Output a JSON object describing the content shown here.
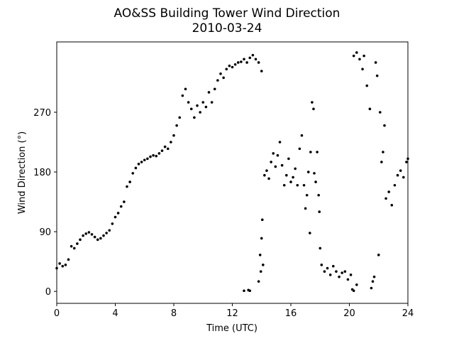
{
  "chart_data": {
    "type": "scatter",
    "title": "AO&SS Building Tower Wind Direction",
    "subtitle": "2010-03-24",
    "x_label": "Time (UTC)",
    "y_label": "Wind Direction (°)",
    "color": "#000000",
    "xlim": [
      0,
      24
    ],
    "xticks": [
      0,
      4,
      8,
      12,
      16,
      20,
      24
    ],
    "ylim": [
      -18,
      376
    ],
    "yticks": [
      0,
      90,
      180,
      270
    ],
    "x": [
      0.0,
      0.2,
      0.4,
      0.6,
      0.8,
      1.0,
      1.2,
      1.4,
      1.6,
      1.8,
      2.0,
      2.2,
      2.4,
      2.6,
      2.8,
      3.0,
      3.2,
      3.4,
      3.6,
      3.8,
      4.0,
      4.2,
      4.4,
      4.6,
      4.8,
      5.0,
      5.2,
      5.4,
      5.6,
      5.8,
      6.0,
      6.2,
      6.4,
      6.6,
      6.8,
      7.0,
      7.2,
      7.4,
      7.6,
      7.8,
      8.0,
      8.2,
      8.4,
      8.6,
      8.8,
      9.0,
      9.2,
      9.4,
      9.6,
      9.8,
      10.0,
      10.2,
      10.4,
      10.6,
      10.8,
      11.0,
      11.2,
      11.4,
      11.6,
      11.8,
      12.0,
      12.2,
      12.4,
      12.6,
      12.8,
      13.0,
      13.2,
      13.4,
      13.6,
      13.8,
      14.0,
      12.8,
      13.1,
      13.2,
      13.8,
      13.9,
      13.95,
      14.0,
      14.05,
      14.1,
      14.2,
      14.35,
      14.5,
      14.65,
      14.8,
      14.95,
      15.1,
      15.25,
      15.4,
      15.55,
      15.7,
      15.85,
      16.0,
      16.15,
      16.3,
      16.45,
      16.6,
      16.75,
      16.9,
      17.0,
      17.1,
      17.2,
      17.3,
      17.35,
      17.45,
      17.55,
      17.6,
      17.7,
      17.8,
      17.9,
      17.95,
      18.0,
      18.1,
      18.3,
      18.5,
      18.7,
      18.9,
      19.1,
      19.3,
      19.5,
      19.7,
      19.9,
      20.1,
      20.2,
      20.3,
      20.5,
      20.3,
      20.5,
      20.7,
      20.9,
      21.0,
      21.2,
      21.4,
      21.5,
      21.6,
      21.7,
      21.8,
      21.9,
      22.0,
      22.1,
      22.2,
      22.3,
      22.4,
      22.5,
      22.7,
      22.9,
      23.1,
      23.3,
      23.5,
      23.7,
      23.9,
      24.0
    ],
    "values": [
      35,
      42,
      38,
      40,
      48,
      68,
      65,
      72,
      78,
      84,
      87,
      89,
      86,
      82,
      78,
      80,
      84,
      88,
      92,
      102,
      112,
      118,
      128,
      135,
      158,
      165,
      178,
      186,
      192,
      195,
      198,
      200,
      203,
      205,
      204,
      208,
      212,
      218,
      215,
      225,
      235,
      250,
      262,
      295,
      305,
      285,
      275,
      262,
      280,
      270,
      285,
      278,
      300,
      285,
      305,
      318,
      328,
      322,
      335,
      340,
      338,
      342,
      345,
      346,
      350,
      345,
      352,
      356,
      350,
      345,
      332,
      1,
      2,
      1,
      15,
      55,
      30,
      80,
      108,
      40,
      175,
      182,
      170,
      195,
      208,
      188,
      205,
      225,
      190,
      160,
      175,
      200,
      165,
      172,
      185,
      160,
      215,
      235,
      160,
      125,
      145,
      180,
      88,
      210,
      285,
      275,
      178,
      165,
      210,
      145,
      120,
      65,
      40,
      30,
      35,
      25,
      38,
      30,
      22,
      28,
      30,
      18,
      25,
      3,
      1,
      10,
      355,
      360,
      350,
      335,
      355,
      310,
      275,
      5,
      15,
      22,
      345,
      325,
      55,
      270,
      195,
      210,
      250,
      140,
      150,
      130,
      160,
      175,
      182,
      172,
      195,
      200
    ]
  }
}
